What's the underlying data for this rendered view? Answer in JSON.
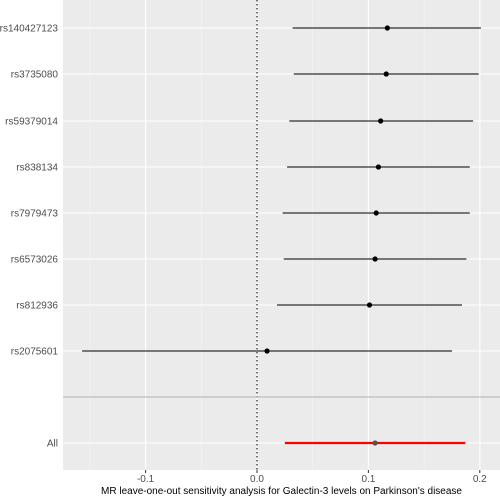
{
  "chart_data": {
    "type": "forest",
    "title": "",
    "xlabel": "MR leave-one-out sensitivity analysis for Galectin-3 levels on Parkinson's disease",
    "ylabel": "",
    "xlim": [
      -0.175,
      0.21
    ],
    "x_ticks": [
      -0.1,
      0.0,
      0.1,
      0.2
    ],
    "x_tick_labels": [
      "-0.1",
      "0.0",
      "0.1",
      "0.2"
    ],
    "reference_line": 0,
    "grid": true,
    "panel_color": "#ebebeb",
    "snps": [
      {
        "label": "rs140427123",
        "estimate": 0.117,
        "lower": 0.032,
        "upper": 0.201
      },
      {
        "label": "rs3735080",
        "estimate": 0.116,
        "lower": 0.033,
        "upper": 0.199
      },
      {
        "label": "rs59379014",
        "estimate": 0.111,
        "lower": 0.029,
        "upper": 0.194
      },
      {
        "label": "rs838134",
        "estimate": 0.109,
        "lower": 0.027,
        "upper": 0.191
      },
      {
        "label": "rs7979473",
        "estimate": 0.107,
        "lower": 0.023,
        "upper": 0.191
      },
      {
        "label": "rs6573026",
        "estimate": 0.106,
        "lower": 0.024,
        "upper": 0.188
      },
      {
        "label": "rs812936",
        "estimate": 0.101,
        "lower": 0.018,
        "upper": 0.184
      },
      {
        "label": "rs2075601",
        "estimate": 0.009,
        "lower": -0.157,
        "upper": 0.175
      }
    ],
    "overall": {
      "label": "All",
      "estimate": 0.106,
      "lower": 0.025,
      "upper": 0.187,
      "color": "#ff0000"
    },
    "point_color": "#000000",
    "line_color": "#000000",
    "separator_color": "#bdbdbd"
  }
}
